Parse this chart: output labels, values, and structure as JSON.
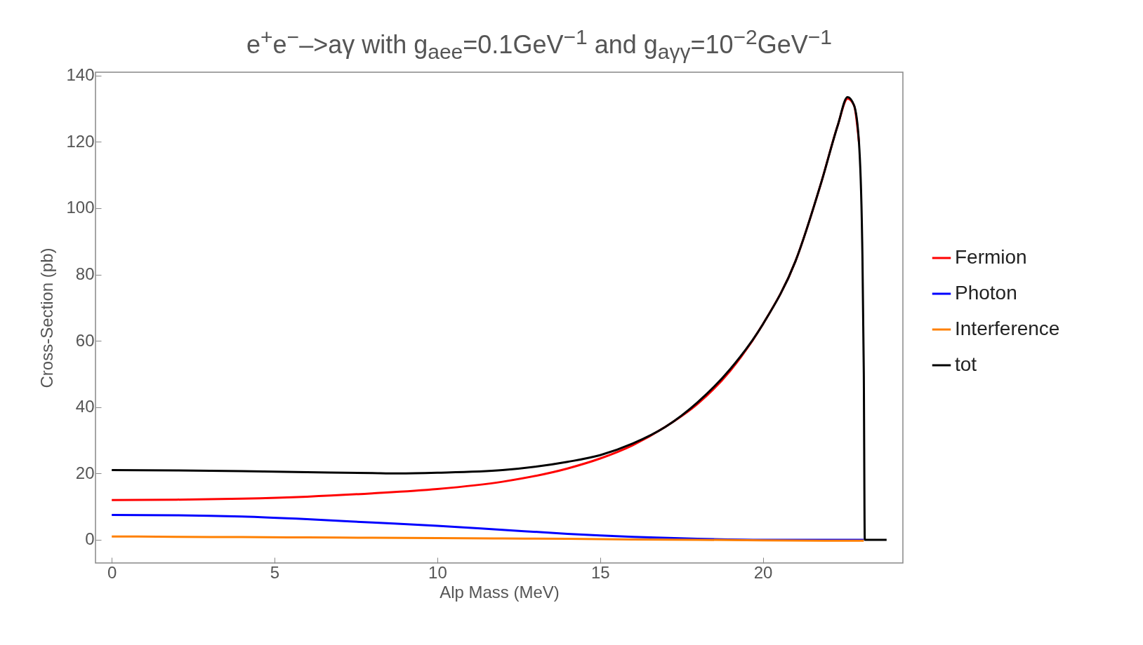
{
  "chart_data": {
    "type": "line",
    "title": "e$^{+}$e$^{−}$–>aγ with g$_{aee}$=0.1GeV$^{−1}$ and g$_{aγγ}$=10$^{−2}$GeV$^{−1}$",
    "xlabel": "Alp Mass (MeV)",
    "ylabel": "Cross-Section (pb)",
    "xlim": [
      -0.5,
      24.3
    ],
    "ylim": [
      -7,
      141
    ],
    "xticks": [
      0,
      5,
      10,
      15,
      20
    ],
    "yticks": [
      0,
      20,
      40,
      60,
      80,
      100,
      120,
      140
    ],
    "grid": false,
    "legend": "right",
    "marker": "none",
    "line_style": "solid",
    "series": [
      {
        "name": "Fermion",
        "color": "#ff0000",
        "x": [
          0,
          2,
          4,
          6,
          8,
          10,
          12,
          14,
          15,
          16,
          17,
          18,
          19,
          20,
          21,
          21.8,
          22.3,
          22.6,
          22.8,
          22.95
        ],
        "values": [
          12,
          12.1,
          12.4,
          13,
          14,
          15.3,
          17.5,
          21.5,
          24.5,
          28.5,
          34,
          41,
          51,
          65,
          84,
          108,
          125,
          133,
          131,
          120
        ]
      },
      {
        "name": "Photon",
        "color": "#0000ff",
        "x": [
          0,
          2,
          4,
          6,
          8,
          10,
          12,
          14,
          15,
          16,
          18,
          20,
          23.1
        ],
        "values": [
          7.5,
          7.4,
          7,
          6.2,
          5.2,
          4.2,
          3,
          1.8,
          1.3,
          0.9,
          0.3,
          0,
          0
        ]
      },
      {
        "name": "Interference",
        "color": "#ff8000",
        "x": [
          0,
          2,
          4,
          6,
          8,
          10,
          12,
          14,
          16,
          18,
          20,
          23.1
        ],
        "values": [
          1,
          0.9,
          0.8,
          0.7,
          0.6,
          0.5,
          0.4,
          0.3,
          0.1,
          0,
          -0.2,
          -0.3
        ]
      },
      {
        "name": "tot",
        "color": "#000000",
        "x": [
          0,
          2,
          4,
          6,
          8,
          8.8,
          10,
          12,
          14,
          15,
          16,
          17,
          18,
          19,
          20,
          21,
          21.8,
          22.3,
          22.6,
          22.8,
          22.95,
          23.05,
          23.1,
          23.13,
          23.8
        ],
        "values": [
          21,
          20.9,
          20.7,
          20.4,
          20.1,
          20,
          20.2,
          21,
          23.5,
          25.5,
          29,
          34,
          41.5,
          51.5,
          65,
          84,
          108,
          125,
          133.5,
          131,
          120,
          90,
          50,
          0,
          0
        ]
      }
    ]
  }
}
